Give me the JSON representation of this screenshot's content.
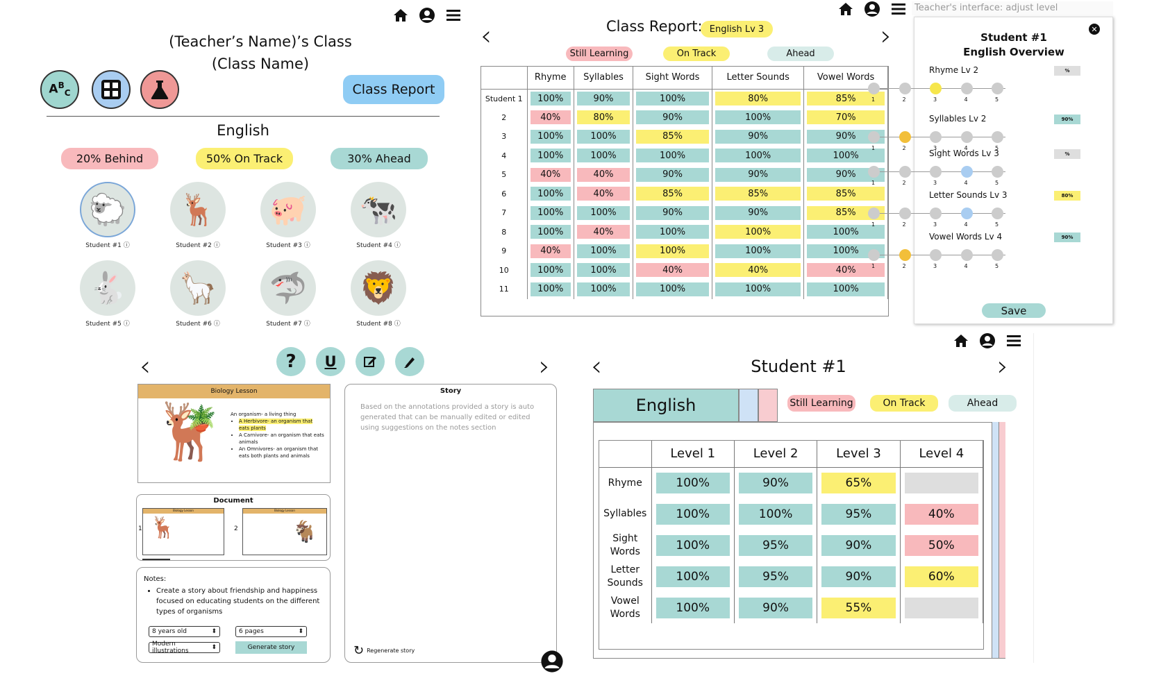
{
  "teacher": {
    "title_line1": "(Teacher’s Name)’s Class",
    "title_line2": "(Class Name)",
    "class_report_button": "Class Report",
    "subject": "English",
    "subject_icons": [
      "abc-icon",
      "calculator-icon",
      "flask-icon"
    ],
    "stats": {
      "behind": "20% Behind",
      "on_track": "50% On Track",
      "ahead": "30% Ahead"
    },
    "students": [
      {
        "label": "Student #1",
        "icon": "sheep-icon",
        "glyph": "🐑"
      },
      {
        "label": "Student #2",
        "icon": "deer-icon",
        "glyph": "🦌"
      },
      {
        "label": "Student #3",
        "icon": "pig-icon",
        "glyph": "🐖"
      },
      {
        "label": "Student #4",
        "icon": "cow-icon",
        "glyph": "🐄"
      },
      {
        "label": "Student #5",
        "icon": "rabbit-icon",
        "glyph": "🐇"
      },
      {
        "label": "Student #6",
        "icon": "llama-icon",
        "glyph": "🦙"
      },
      {
        "label": "Student #7",
        "icon": "shark-icon",
        "glyph": "🦈"
      },
      {
        "label": "Student #8",
        "icon": "lion-icon",
        "glyph": "🦁"
      }
    ]
  },
  "class_report": {
    "title": "Class Report:",
    "level_badge": "English Lv 3",
    "legend": {
      "still_learning": "Still Learning",
      "on_track": "On Track",
      "ahead": "Ahead"
    },
    "columns": [
      "Rhyme",
      "Syllables",
      "Sight Words",
      "Letter Sounds",
      "Vowel Words"
    ],
    "rows": [
      {
        "label": "Student 1",
        "cells": [
          [
            "100%",
            "teal"
          ],
          [
            "90%",
            "teal"
          ],
          [
            "100%",
            "teal"
          ],
          [
            "80%",
            "yel"
          ],
          [
            "85%",
            "yel"
          ]
        ]
      },
      {
        "label": "2",
        "cells": [
          [
            "40%",
            "red"
          ],
          [
            "80%",
            "yel"
          ],
          [
            "90%",
            "teal"
          ],
          [
            "100%",
            "teal"
          ],
          [
            "70%",
            "yel"
          ]
        ]
      },
      {
        "label": "3",
        "cells": [
          [
            "100%",
            "teal"
          ],
          [
            "100%",
            "teal"
          ],
          [
            "85%",
            "yel"
          ],
          [
            "90%",
            "teal"
          ],
          [
            "90%",
            "teal"
          ]
        ]
      },
      {
        "label": "4",
        "cells": [
          [
            "100%",
            "teal"
          ],
          [
            "100%",
            "teal"
          ],
          [
            "100%",
            "teal"
          ],
          [
            "100%",
            "teal"
          ],
          [
            "100%",
            "teal"
          ]
        ]
      },
      {
        "label": "5",
        "cells": [
          [
            "40%",
            "red"
          ],
          [
            "40%",
            "red"
          ],
          [
            "90%",
            "teal"
          ],
          [
            "90%",
            "teal"
          ],
          [
            "90%",
            "teal"
          ]
        ]
      },
      {
        "label": "6",
        "cells": [
          [
            "100%",
            "teal"
          ],
          [
            "40%",
            "red"
          ],
          [
            "85%",
            "yel"
          ],
          [
            "85%",
            "yel"
          ],
          [
            "85%",
            "yel"
          ]
        ]
      },
      {
        "label": "7",
        "cells": [
          [
            "100%",
            "teal"
          ],
          [
            "100%",
            "teal"
          ],
          [
            "90%",
            "teal"
          ],
          [
            "90%",
            "teal"
          ],
          [
            "85%",
            "yel"
          ]
        ]
      },
      {
        "label": "8",
        "cells": [
          [
            "100%",
            "teal"
          ],
          [
            "40%",
            "red"
          ],
          [
            "100%",
            "teal"
          ],
          [
            "100%",
            "yel"
          ],
          [
            "100%",
            "teal"
          ]
        ]
      },
      {
        "label": "9",
        "cells": [
          [
            "40%",
            "red"
          ],
          [
            "100%",
            "teal"
          ],
          [
            "100%",
            "yel"
          ],
          [
            "100%",
            "teal"
          ],
          [
            "100%",
            "teal"
          ]
        ]
      },
      {
        "label": "10",
        "cells": [
          [
            "100%",
            "teal"
          ],
          [
            "100%",
            "teal"
          ],
          [
            "40%",
            "red"
          ],
          [
            "40%",
            "yel"
          ],
          [
            "40%",
            "red"
          ]
        ]
      },
      {
        "label": "11",
        "cells": [
          [
            "100%",
            "teal"
          ],
          [
            "100%",
            "teal"
          ],
          [
            "100%",
            "teal"
          ],
          [
            "100%",
            "teal"
          ],
          [
            "100%",
            "teal"
          ]
        ]
      }
    ]
  },
  "adjust": {
    "search_placeholder": "Teacher's interface: adjust level",
    "title_line1": "Student #1",
    "title_line2": "English Overview",
    "save_label": "Save",
    "scale": [
      "1",
      "2",
      "3",
      "4",
      "5"
    ],
    "skills": [
      {
        "label": "Rhyme Lv 2",
        "badge": "%",
        "badge_color": "gry",
        "level": 3,
        "dot_color": "#f6e64c"
      },
      {
        "label": "Syllables Lv 2",
        "badge": "90%",
        "badge_color": "teal",
        "level": 2,
        "dot_color": "#f2bf3a"
      },
      {
        "label": "Sight Words Lv 3",
        "badge": "%",
        "badge_color": "gry",
        "level": 4,
        "dot_color": "#a9cdf1"
      },
      {
        "label": "Letter Sounds Lv 3",
        "badge": "80%",
        "badge_color": "yel",
        "level": 4,
        "dot_color": "#a9cdf1"
      },
      {
        "label": "Vowel Words Lv 4",
        "badge": "90%",
        "badge_color": "teal",
        "level": 2,
        "dot_color": "#f2bf3a"
      }
    ]
  },
  "editor": {
    "toolbar": [
      "help-icon",
      "underline-icon",
      "edit-icon",
      "highlight-icon"
    ],
    "lesson_title": "Biology Lesson",
    "lesson_text": [
      "An organism- a living thing",
      "A Herbivore- an organism that eats plants",
      "A Carnivore- an organism that eats animals",
      "An Omnivores- an organism that eats both plants and animals"
    ],
    "document_label": "Document",
    "doc_pages": [
      "1",
      "2"
    ],
    "doc_thumb_title": "Biology Lesson",
    "notes_label": "Notes:",
    "notes_text": "Create a story about friendship and happiness focused on educating students on the different types of organisms",
    "age_select": "8 years old",
    "pages_select": "6 pages",
    "style_select": "Modern illustrations",
    "generate_label": "Generate story",
    "story_title": "Story",
    "story_text": "Based on the annotations provided a story is auto generated that can be manually edited or edited using suggestions on the notes section",
    "regenerate_label": "Regenerate story"
  },
  "student_detail": {
    "title": "Student #1",
    "subject": "English",
    "legend": {
      "still_learning": "Still Learning",
      "on_track": "On Track",
      "ahead": "Ahead"
    },
    "columns": [
      "Level 1",
      "Level 2",
      "Level 3",
      "Level 4"
    ],
    "rows": [
      {
        "label": "Rhyme",
        "cells": [
          [
            "100%",
            "teal"
          ],
          [
            "90%",
            "teal"
          ],
          [
            "65%",
            "yel"
          ],
          [
            "",
            "gry"
          ]
        ]
      },
      {
        "label": "Syllables",
        "cells": [
          [
            "100%",
            "teal"
          ],
          [
            "100%",
            "teal"
          ],
          [
            "95%",
            "teal"
          ],
          [
            "40%",
            "red"
          ]
        ]
      },
      {
        "label": "Sight Words",
        "cells": [
          [
            "100%",
            "teal"
          ],
          [
            "95%",
            "teal"
          ],
          [
            "90%",
            "teal"
          ],
          [
            "50%",
            "red"
          ]
        ]
      },
      {
        "label": "Letter Sounds",
        "cells": [
          [
            "100%",
            "teal"
          ],
          [
            "95%",
            "teal"
          ],
          [
            "90%",
            "teal"
          ],
          [
            "60%",
            "yel"
          ]
        ]
      },
      {
        "label": "Vowel Words",
        "cells": [
          [
            "100%",
            "teal"
          ],
          [
            "90%",
            "teal"
          ],
          [
            "55%",
            "yel"
          ],
          [
            "",
            "gry"
          ]
        ]
      }
    ]
  },
  "colors": {
    "red": "#f8b9bc",
    "yellow": "#fbef73",
    "teal": "#a8d8d4",
    "blue": "#a9cdf1",
    "gray": "#dedede"
  }
}
